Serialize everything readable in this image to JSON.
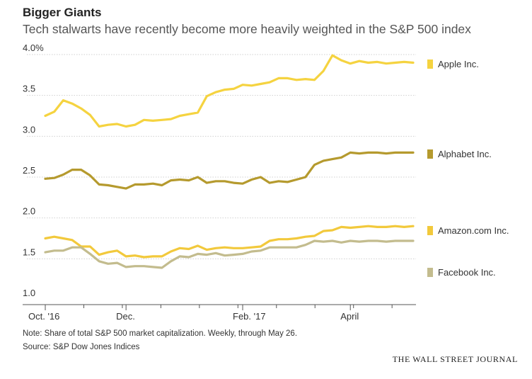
{
  "header": {
    "title": "Bigger Giants",
    "subtitle": "Tech stalwarts have recently become more heavily weighted in the S&P 500 index"
  },
  "footer": {
    "note": "Note: Share of total S&P 500 market capitalization. Weekly, through May 26.",
    "source": "Source: S&P Dow Jones Indices",
    "brand": "THE WALL STREET JOURNAL"
  },
  "chart_data": {
    "type": "line",
    "title": "Bigger Giants",
    "subtitle": "Tech stalwarts have recently become more heavily weighted in the S&P 500 index",
    "ylim": [
      1.0,
      4.0
    ],
    "y_ticks": [
      1.0,
      1.5,
      2.0,
      2.5,
      3.0,
      3.5,
      4.0
    ],
    "y_tick_labels": [
      "1.0",
      "1.5",
      "2.0",
      "2.5",
      "3.0",
      "3.5",
      "4.0%"
    ],
    "x_ticks": [
      {
        "index": 0,
        "label": "Oct. '16"
      },
      {
        "index": 9,
        "label": "Dec."
      },
      {
        "index": 22,
        "label": "Feb. '17"
      },
      {
        "index": 34,
        "label": "April"
      }
    ],
    "grid": true,
    "legend": "right",
    "num_weeks": 42,
    "series": [
      {
        "name": "Apple Inc.",
        "color": "#f5d340",
        "values": [
          3.25,
          3.3,
          3.44,
          3.4,
          3.34,
          3.26,
          3.12,
          3.14,
          3.15,
          3.12,
          3.14,
          3.2,
          3.19,
          3.2,
          3.21,
          3.25,
          3.27,
          3.29,
          3.49,
          3.54,
          3.57,
          3.58,
          3.63,
          3.62,
          3.64,
          3.66,
          3.71,
          3.71,
          3.69,
          3.7,
          3.69,
          3.8,
          3.99,
          3.93,
          3.89,
          3.92,
          3.9,
          3.91,
          3.89,
          3.9,
          3.91,
          3.9
        ]
      },
      {
        "name": "Alphabet Inc.",
        "color": "#b59a2e",
        "values": [
          2.48,
          2.49,
          2.53,
          2.59,
          2.59,
          2.52,
          2.41,
          2.4,
          2.38,
          2.36,
          2.41,
          2.41,
          2.42,
          2.4,
          2.46,
          2.47,
          2.46,
          2.5,
          2.43,
          2.45,
          2.45,
          2.43,
          2.42,
          2.47,
          2.5,
          2.43,
          2.45,
          2.44,
          2.47,
          2.5,
          2.65,
          2.7,
          2.72,
          2.74,
          2.8,
          2.79,
          2.8,
          2.8,
          2.79,
          2.8,
          2.8,
          2.8
        ]
      },
      {
        "name": "Amazon.com Inc.",
        "color": "#f2c93c",
        "values": [
          1.75,
          1.77,
          1.75,
          1.73,
          1.65,
          1.65,
          1.55,
          1.58,
          1.6,
          1.53,
          1.54,
          1.52,
          1.53,
          1.53,
          1.59,
          1.63,
          1.62,
          1.66,
          1.61,
          1.63,
          1.64,
          1.63,
          1.63,
          1.64,
          1.65,
          1.72,
          1.74,
          1.74,
          1.75,
          1.77,
          1.78,
          1.84,
          1.85,
          1.89,
          1.88,
          1.89,
          1.9,
          1.89,
          1.89,
          1.9,
          1.89,
          1.9
        ]
      },
      {
        "name": "Facebook Inc.",
        "color": "#c3bc8e",
        "values": [
          1.58,
          1.6,
          1.6,
          1.64,
          1.64,
          1.56,
          1.47,
          1.44,
          1.45,
          1.4,
          1.41,
          1.41,
          1.4,
          1.39,
          1.47,
          1.53,
          1.52,
          1.56,
          1.55,
          1.57,
          1.54,
          1.55,
          1.56,
          1.59,
          1.6,
          1.64,
          1.64,
          1.64,
          1.64,
          1.67,
          1.72,
          1.71,
          1.72,
          1.7,
          1.72,
          1.71,
          1.72,
          1.72,
          1.71,
          1.72,
          1.72,
          1.72
        ]
      }
    ]
  }
}
